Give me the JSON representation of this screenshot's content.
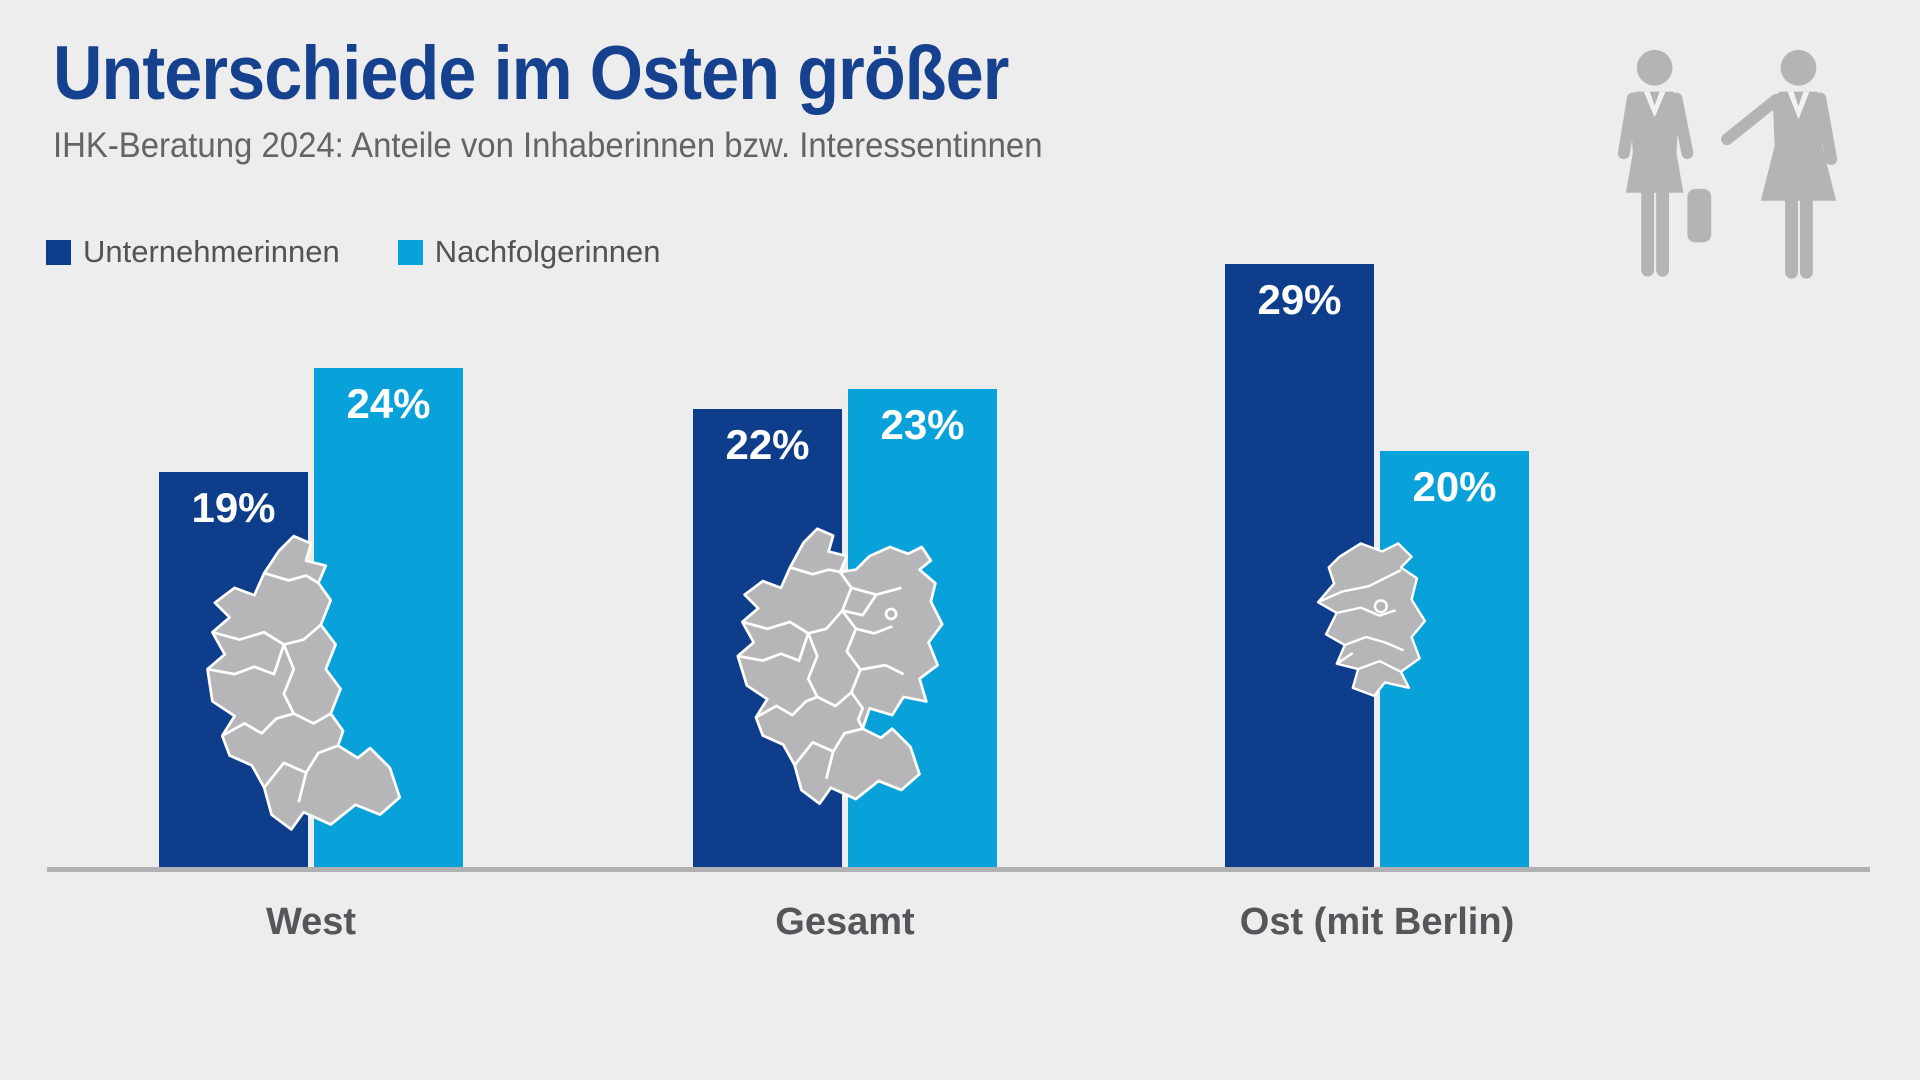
{
  "title": "Unterschiede im Osten größer",
  "subtitle": "IHK-Beratung 2024: Anteile von Inhaberinnen bzw. Interessentinnen",
  "legend": [
    {
      "label": "Unternehmerinnen",
      "color": "#0e3d8c"
    },
    {
      "label": "Nachfolgerinnen",
      "color": "#09a1da"
    }
  ],
  "chart_data": {
    "type": "bar",
    "categories": [
      "West",
      "Gesamt",
      "Ost (mit Berlin)"
    ],
    "series": [
      {
        "name": "Unternehmerinnen",
        "color": "#0e3d8c",
        "values": [
          19,
          22,
          29
        ]
      },
      {
        "name": "Nachfolgerinnen",
        "color": "#09a1da",
        "values": [
          24,
          23,
          20
        ]
      }
    ],
    "value_suffix": "%",
    "value_labels": [
      "19%",
      "24%",
      "22%",
      "23%",
      "29%",
      "20%"
    ],
    "ylim": [
      0,
      30
    ],
    "grid": false,
    "legend_position": "top-left",
    "title": "Unterschiede im Osten größer",
    "xlabel": "",
    "ylabel": ""
  },
  "decorations": {
    "map_west": "west-germany-map",
    "map_total": "germany-map",
    "map_east": "east-germany-map",
    "corner_icon": "two-businesswomen",
    "map_color": "#b6b6b8",
    "icon_color": "#b4b4b6",
    "baseline_color": "#b1b1b3"
  }
}
